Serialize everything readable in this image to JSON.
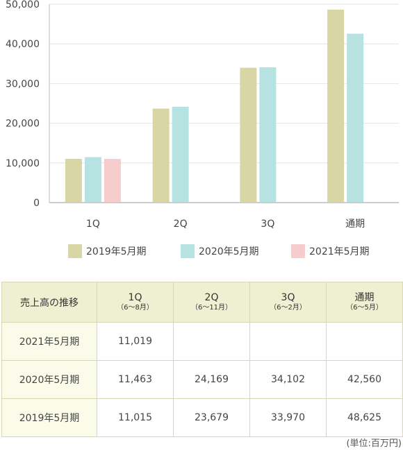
{
  "chart_data": {
    "type": "bar",
    "categories": [
      "1Q",
      "2Q",
      "3Q",
      "通期"
    ],
    "series": [
      {
        "name": "2019年5月期",
        "color": "#d8d6a4",
        "values": [
          11015,
          23679,
          33970,
          48625
        ]
      },
      {
        "name": "2020年5月期",
        "color": "#b6e3e2",
        "values": [
          11463,
          24169,
          34102,
          42560
        ]
      },
      {
        "name": "2021年5月期",
        "color": "#f6cccc",
        "values": [
          11019,
          null,
          null,
          null
        ]
      }
    ],
    "ylim": [
      0,
      50000
    ],
    "yticks": [
      0,
      10000,
      20000,
      30000,
      40000,
      50000
    ],
    "ytick_labels": [
      "0",
      "10,000",
      "20,000",
      "30,000",
      "40,000",
      "50,000"
    ],
    "grid": true,
    "legend_position": "bottom"
  },
  "table": {
    "corner_label": "売上高の推移",
    "columns": [
      {
        "label": "1Q",
        "sub": "（6〜8月）"
      },
      {
        "label": "2Q",
        "sub": "（6〜11月）"
      },
      {
        "label": "3Q",
        "sub": "（6〜2月）"
      },
      {
        "label": "通期",
        "sub": "（6〜5月）"
      }
    ],
    "rows": [
      {
        "label": "2021年5月期",
        "cells": [
          "11,019",
          "",
          "",
          ""
        ]
      },
      {
        "label": "2020年5月期",
        "cells": [
          "11,463",
          "24,169",
          "34,102",
          "42,560"
        ]
      },
      {
        "label": "2019年5月期",
        "cells": [
          "11,015",
          "23,679",
          "33,970",
          "48,625"
        ]
      }
    ]
  },
  "unit_note": "(単位:百万円)"
}
